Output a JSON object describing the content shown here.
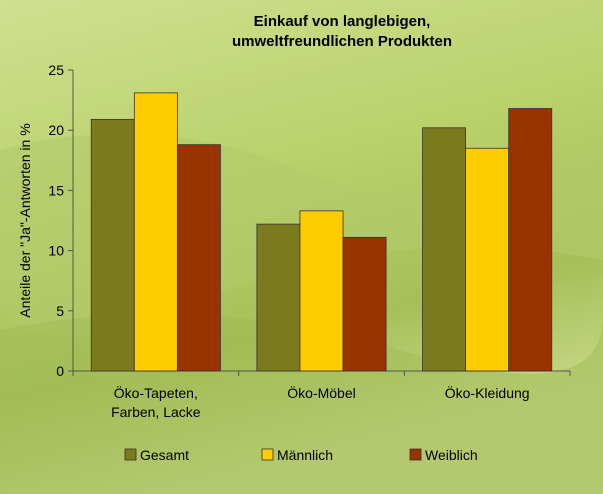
{
  "chart_data": {
    "type": "bar",
    "title": "Einkauf von langlebigen,\numweltfreundlichen  Produkten",
    "y_label": "Anteile der \"Ja\"-Antworten in %",
    "categories": [
      "Öko-Tapeten,\nFarben, Lacke",
      "Öko-Möbel",
      "Öko-Kleidung"
    ],
    "series": [
      {
        "name": "Gesamt",
        "color": "#7b7b1e",
        "values": [
          20.9,
          12.2,
          20.2
        ]
      },
      {
        "name": "Männlich",
        "color": "#ffcc00",
        "values": [
          23.1,
          13.3,
          18.5
        ]
      },
      {
        "name": "Weiblich",
        "color": "#993300",
        "values": [
          18.8,
          11.1,
          21.8
        ]
      }
    ],
    "ylim": [
      0,
      25
    ],
    "yticks": [
      0,
      5,
      10,
      15,
      20,
      25
    ],
    "legend": "bottom"
  }
}
